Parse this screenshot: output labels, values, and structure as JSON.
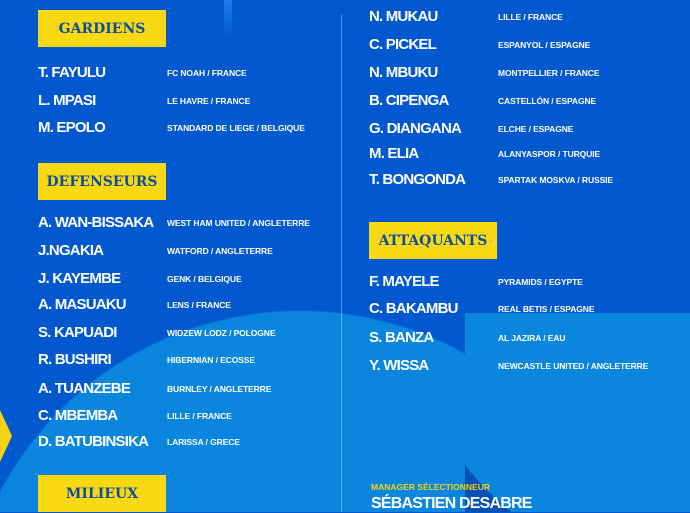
{
  "colors": {
    "background": "#0259cf",
    "accent": "#f8d811",
    "header_text": "#0d4f9e"
  },
  "sections": {
    "gardiens": {
      "title": "GARDIENS",
      "players": [
        {
          "name": "T. FAYULU",
          "club": "FC NOAH / FRANCE"
        },
        {
          "name": "L. MPASI",
          "club": "LE HAVRE / FRANCE"
        },
        {
          "name": "M. EPOLO",
          "club": "STANDARD DE LIEGE / BELGIQUE"
        }
      ]
    },
    "defenseurs": {
      "title": "DEFENSEURS",
      "players": [
        {
          "name": "A. WAN-BISSAKA",
          "club": "WEST HAM UNITED / ANGLETERRE"
        },
        {
          "name": "J.NGAKIA",
          "club": "WATFORD / ANGLETERRE"
        },
        {
          "name": "J. KAYEMBE",
          "club": "GENK / BELGIQUE"
        },
        {
          "name": "A. MASUAKU",
          "club": "LENS / FRANCE"
        },
        {
          "name": "S. KAPUADI",
          "club": "WIDZEW LODZ / POLOGNE"
        },
        {
          "name": "R. BUSHIRI",
          "club": "HIBERNIAN / ECOSSE"
        },
        {
          "name": "A. TUANZEBE",
          "club": "BURNLEY / ANGLETERRE"
        },
        {
          "name": "C. MBEMBA",
          "club": "LILLE / FRANCE"
        },
        {
          "name": "D. BATUBINSIKA",
          "club": "LARISSA / GRECE"
        }
      ]
    },
    "milieux": {
      "title": "MILIEUX",
      "players": [
        {
          "name": "N. MUKAU",
          "club": "LILLE / FRANCE"
        },
        {
          "name": "C. PICKEL",
          "club": "ESPANYOL / ESPAGNE"
        },
        {
          "name": "N. MBUKU",
          "club": "MONTPELLIER / FRANCE"
        },
        {
          "name": "B. CIPENGA",
          "club": "CASTELLÓN / ESPAGNE"
        },
        {
          "name": "G. DIANGANA",
          "club": "ELCHE / ESPAGNE"
        },
        {
          "name": "M. ELIA",
          "club": "ALANYASPOR / TURQUIE"
        },
        {
          "name": "T. BONGONDA",
          "club": "SPARTAK MOSKVA / RUSSIE"
        }
      ]
    },
    "attaquants": {
      "title": "ATTAQUANTS",
      "players": [
        {
          "name": "F. MAYELE",
          "club": "PYRAMIDS / EGYPTE"
        },
        {
          "name": "C. BAKAMBU",
          "club": "REAL BETIS / ESPAGNE"
        },
        {
          "name": "S. BANZA",
          "club": "AL JAZIRA / EAU"
        },
        {
          "name": "Y. WISSA",
          "club": "NEWCASTLE UNITED / ANGLETERRE"
        }
      ]
    }
  },
  "manager": {
    "label": "MANAGER SÉLECTIONNEUR",
    "name": "SÉBASTIEN DESABRE"
  }
}
